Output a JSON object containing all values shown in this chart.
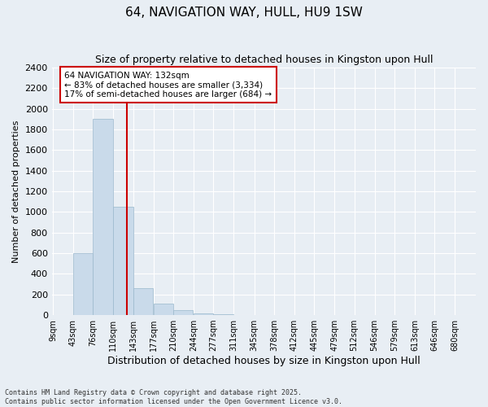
{
  "title": "64, NAVIGATION WAY, HULL, HU9 1SW",
  "subtitle": "Size of property relative to detached houses in Kingston upon Hull",
  "xlabel": "Distribution of detached houses by size in Kingston upon Hull",
  "ylabel": "Number of detached properties",
  "bin_labels": [
    "9sqm",
    "43sqm",
    "76sqm",
    "110sqm",
    "143sqm",
    "177sqm",
    "210sqm",
    "244sqm",
    "277sqm",
    "311sqm",
    "345sqm",
    "378sqm",
    "412sqm",
    "445sqm",
    "479sqm",
    "512sqm",
    "546sqm",
    "579sqm",
    "613sqm",
    "646sqm",
    "680sqm"
  ],
  "bin_edges": [
    9,
    43,
    76,
    110,
    143,
    177,
    210,
    244,
    277,
    311,
    345,
    378,
    412,
    445,
    479,
    512,
    546,
    579,
    613,
    646,
    680
  ],
  "bar_heights": [
    0,
    600,
    1900,
    1050,
    260,
    110,
    50,
    20,
    5,
    2,
    0,
    1,
    0,
    0,
    0,
    0,
    0,
    0,
    0,
    0
  ],
  "bar_color": "#c9daea",
  "bar_edge_color": "#9ab8cc",
  "property_size": 132,
  "property_label": "64 NAVIGATION WAY: 132sqm",
  "annotation_line1": "← 83% of detached houses are smaller (3,334)",
  "annotation_line2": "17% of semi-detached houses are larger (684) →",
  "vline_color": "#cc0000",
  "annotation_box_color": "#cc0000",
  "ylim": [
    0,
    2400
  ],
  "yticks": [
    0,
    200,
    400,
    600,
    800,
    1000,
    1200,
    1400,
    1600,
    1800,
    2000,
    2200,
    2400
  ],
  "background_color": "#e8eef4",
  "grid_color": "#ffffff",
  "footer_line1": "Contains HM Land Registry data © Crown copyright and database right 2025.",
  "footer_line2": "Contains public sector information licensed under the Open Government Licence v3.0."
}
